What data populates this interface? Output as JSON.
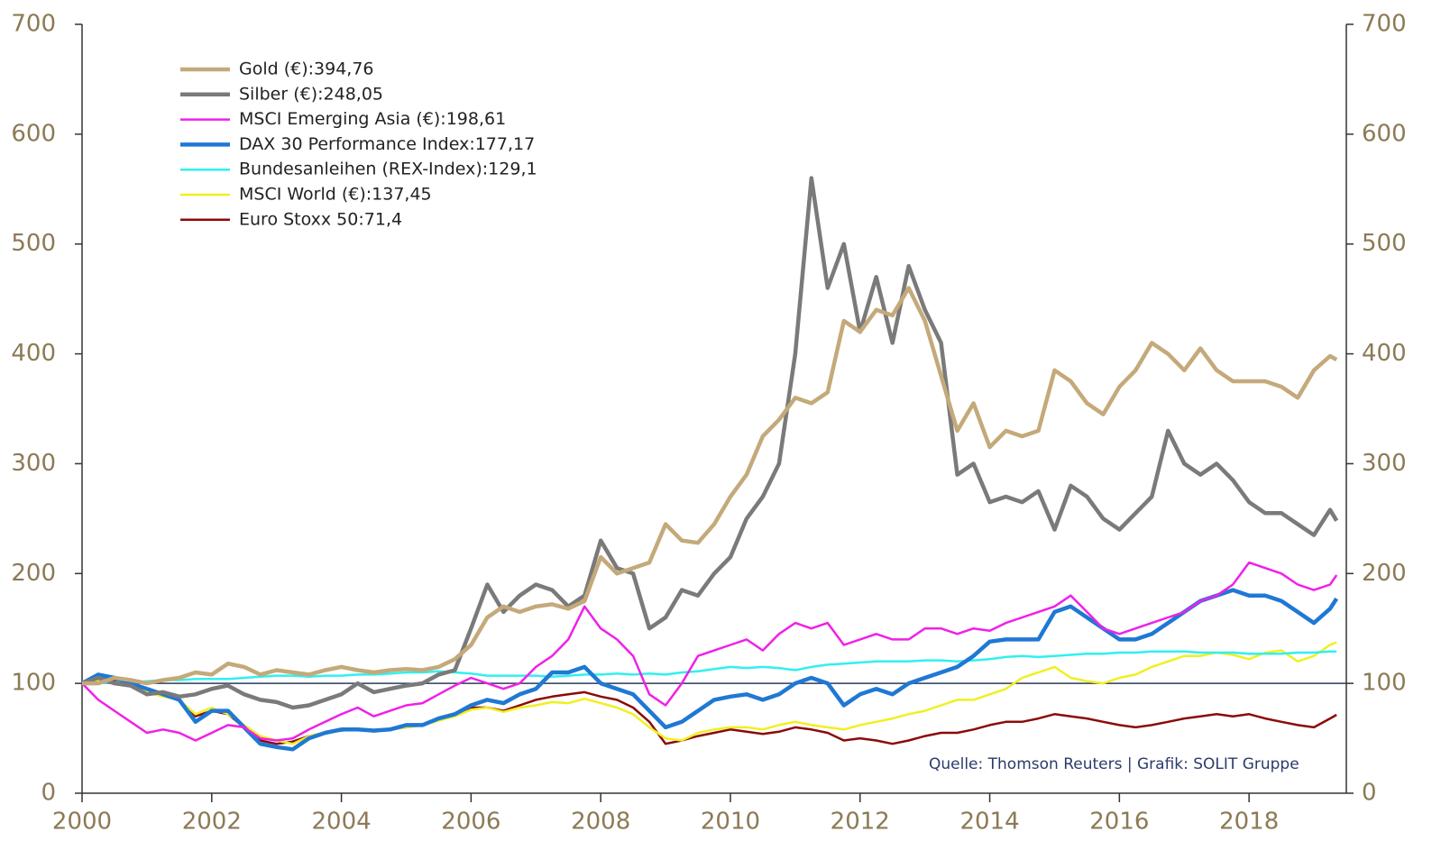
{
  "chart_data": {
    "type": "line",
    "source": "Quelle: Thomson Reuters | Grafik: SOLIT Gruppe",
    "xlim": [
      2000,
      2019.5
    ],
    "xticks": [
      2000,
      2002,
      2004,
      2006,
      2008,
      2010,
      2012,
      2014,
      2016,
      2018
    ],
    "ylim": [
      0,
      700
    ],
    "yticks": [
      0,
      100,
      200,
      300,
      400,
      500,
      600,
      700
    ],
    "y2lim": [
      0,
      700
    ],
    "y2ticks": [
      0,
      100,
      200,
      300,
      400,
      500,
      600,
      700
    ],
    "hline": 100,
    "legend": "upper left",
    "x": [
      2000,
      2000.25,
      2000.5,
      2000.75,
      2001,
      2001.25,
      2001.5,
      2001.75,
      2002,
      2002.25,
      2002.5,
      2002.75,
      2003,
      2003.25,
      2003.5,
      2003.75,
      2004,
      2004.25,
      2004.5,
      2004.75,
      2005,
      2005.25,
      2005.5,
      2005.75,
      2006,
      2006.25,
      2006.5,
      2006.75,
      2007,
      2007.25,
      2007.5,
      2007.75,
      2008,
      2008.25,
      2008.5,
      2008.75,
      2009,
      2009.25,
      2009.5,
      2009.75,
      2010,
      2010.25,
      2010.5,
      2010.75,
      2011,
      2011.25,
      2011.5,
      2011.75,
      2012,
      2012.25,
      2012.5,
      2012.75,
      2013,
      2013.25,
      2013.5,
      2013.75,
      2014,
      2014.25,
      2014.5,
      2014.75,
      2015,
      2015.25,
      2015.5,
      2015.75,
      2016,
      2016.25,
      2016.5,
      2016.75,
      2017,
      2017.25,
      2017.5,
      2017.75,
      2018,
      2018.25,
      2018.5,
      2018.75,
      2019,
      2019.25,
      2019.35
    ],
    "series": [
      {
        "name": "Gold (€):394,76",
        "color": "#c4a97a",
        "line_width": 4.5,
        "values": [
          100,
          100,
          105,
          103,
          100,
          103,
          105,
          110,
          108,
          118,
          115,
          108,
          112,
          110,
          108,
          112,
          115,
          112,
          110,
          112,
          113,
          112,
          115,
          122,
          135,
          160,
          170,
          165,
          170,
          172,
          168,
          175,
          215,
          200,
          205,
          210,
          245,
          230,
          228,
          245,
          270,
          290,
          325,
          340,
          360,
          355,
          365,
          430,
          420,
          440,
          435,
          460,
          430,
          380,
          330,
          355,
          315,
          330,
          325,
          330,
          385,
          375,
          355,
          345,
          370,
          385,
          410,
          400,
          385,
          405,
          385,
          375,
          375,
          375,
          370,
          360,
          385,
          398,
          394.76
        ]
      },
      {
        "name": "Silber (€):248,05",
        "color": "#7a7a7a",
        "line_width": 4.5,
        "values": [
          100,
          105,
          100,
          98,
          90,
          92,
          88,
          90,
          95,
          98,
          90,
          85,
          83,
          78,
          80,
          85,
          90,
          100,
          92,
          95,
          98,
          100,
          108,
          112,
          150,
          190,
          165,
          180,
          190,
          185,
          170,
          180,
          230,
          205,
          200,
          150,
          160,
          185,
          180,
          200,
          215,
          250,
          270,
          300,
          400,
          560,
          460,
          500,
          420,
          470,
          410,
          480,
          440,
          410,
          290,
          300,
          265,
          270,
          265,
          275,
          240,
          280,
          270,
          250,
          240,
          255,
          270,
          330,
          300,
          290,
          300,
          285,
          265,
          255,
          255,
          245,
          235,
          258,
          248.05
        ]
      },
      {
        "name": "MSCI Emerging Asia (€):198,61",
        "color": "#f020e8",
        "line_width": 2.5,
        "values": [
          100,
          85,
          75,
          65,
          55,
          58,
          55,
          48,
          55,
          62,
          60,
          50,
          48,
          50,
          58,
          65,
          72,
          78,
          70,
          75,
          80,
          82,
          90,
          98,
          105,
          100,
          95,
          100,
          115,
          125,
          140,
          170,
          150,
          140,
          125,
          90,
          80,
          100,
          125,
          130,
          135,
          140,
          130,
          145,
          155,
          150,
          155,
          135,
          140,
          145,
          140,
          140,
          150,
          150,
          145,
          150,
          148,
          155,
          160,
          165,
          170,
          180,
          165,
          150,
          145,
          150,
          155,
          160,
          165,
          175,
          180,
          190,
          210,
          205,
          200,
          190,
          185,
          190,
          198.61
        ]
      },
      {
        "name": "DAX 30 Performance Index:177,17",
        "color": "#1f78d4",
        "line_width": 4.5,
        "values": [
          100,
          108,
          105,
          100,
          95,
          90,
          85,
          65,
          75,
          75,
          60,
          45,
          42,
          40,
          50,
          55,
          58,
          58,
          57,
          58,
          62,
          62,
          68,
          72,
          80,
          85,
          82,
          90,
          95,
          110,
          110,
          115,
          100,
          95,
          90,
          75,
          60,
          65,
          75,
          85,
          88,
          90,
          85,
          90,
          100,
          105,
          100,
          80,
          90,
          95,
          90,
          100,
          105,
          110,
          115,
          125,
          138,
          140,
          140,
          140,
          165,
          170,
          160,
          150,
          140,
          140,
          145,
          155,
          165,
          175,
          180,
          185,
          180,
          180,
          175,
          165,
          155,
          168,
          177.17
        ]
      },
      {
        "name": "Bundesanleihen (REX-Index):129,1",
        "color": "#30f0f0",
        "line_width": 2.5,
        "values": [
          100,
          100,
          101,
          101,
          102,
          103,
          103,
          104,
          104,
          104,
          105,
          106,
          107,
          107,
          106,
          107,
          107,
          108,
          108,
          109,
          110,
          110,
          111,
          110,
          109,
          107,
          107,
          107,
          107,
          106,
          107,
          108,
          108,
          109,
          108,
          109,
          108,
          110,
          111,
          113,
          115,
          114,
          115,
          114,
          112,
          115,
          117,
          118,
          119,
          120,
          120,
          120,
          121,
          121,
          120,
          121,
          122,
          124,
          125,
          124,
          125,
          126,
          127,
          127,
          128,
          128,
          129,
          129,
          129,
          128,
          128,
          128,
          127,
          127,
          127,
          128,
          128,
          129,
          129.1
        ]
      },
      {
        "name": "MSCI World (€):137,45",
        "color": "#f0f020",
        "line_width": 2.5,
        "values": [
          100,
          103,
          100,
          98,
          92,
          88,
          85,
          72,
          78,
          72,
          62,
          52,
          48,
          45,
          52,
          55,
          58,
          58,
          56,
          58,
          60,
          62,
          66,
          70,
          76,
          78,
          74,
          78,
          80,
          83,
          82,
          86,
          82,
          78,
          72,
          60,
          50,
          48,
          55,
          58,
          60,
          60,
          58,
          62,
          65,
          62,
          60,
          58,
          62,
          65,
          68,
          72,
          75,
          80,
          85,
          85,
          90,
          95,
          105,
          110,
          115,
          105,
          102,
          100,
          105,
          108,
          115,
          120,
          125,
          125,
          128,
          126,
          122,
          128,
          130,
          120,
          125,
          135,
          137.45
        ]
      },
      {
        "name": "Euro Stoxx 50:71,4",
        "color": "#8b0a0a",
        "line_width": 2.5,
        "values": [
          100,
          105,
          103,
          100,
          95,
          90,
          85,
          70,
          75,
          72,
          60,
          48,
          45,
          47,
          52,
          55,
          57,
          58,
          56,
          58,
          60,
          62,
          68,
          72,
          78,
          78,
          75,
          80,
          85,
          88,
          90,
          92,
          88,
          85,
          78,
          65,
          45,
          48,
          52,
          55,
          58,
          56,
          54,
          56,
          60,
          58,
          55,
          48,
          50,
          48,
          45,
          48,
          52,
          55,
          55,
          58,
          62,
          65,
          65,
          68,
          72,
          70,
          68,
          65,
          62,
          60,
          62,
          65,
          68,
          70,
          72,
          70,
          72,
          68,
          65,
          62,
          60,
          68,
          71.4
        ]
      }
    ]
  }
}
